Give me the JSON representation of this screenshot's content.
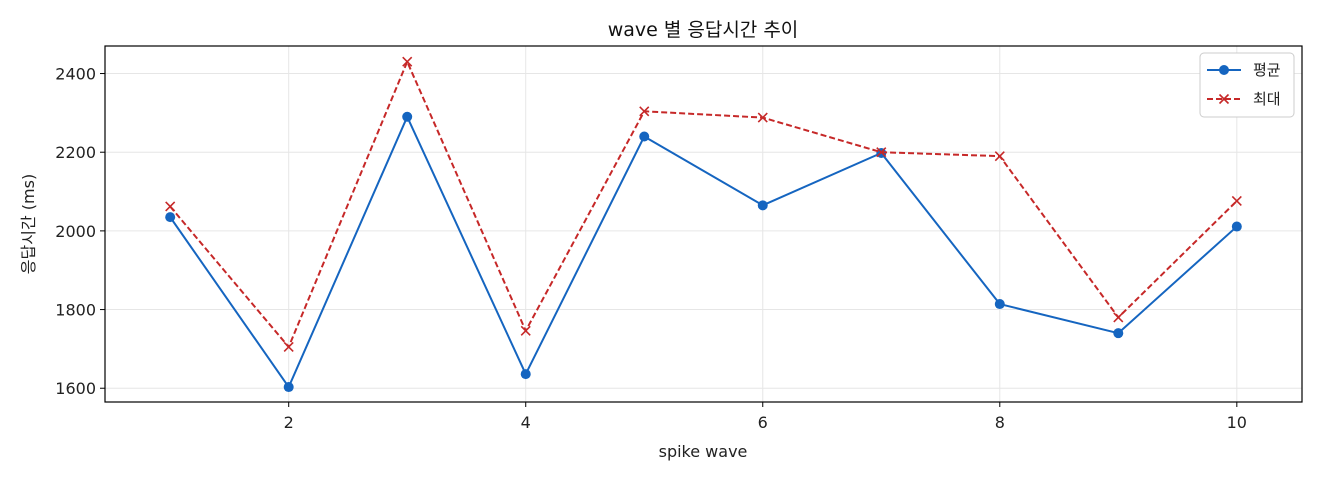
{
  "chart_data": {
    "type": "line",
    "title": "wave 별 응답시간 추이",
    "xlabel": "spike wave",
    "ylabel": "응답시간 (ms)",
    "x": [
      1,
      2,
      3,
      4,
      5,
      6,
      7,
      8,
      9,
      10
    ],
    "xlim": [
      0.45,
      10.55
    ],
    "ylim": [
      1565,
      2470
    ],
    "xticks": [
      2,
      4,
      6,
      8,
      10
    ],
    "yticks": [
      1600,
      1800,
      2000,
      2200,
      2400
    ],
    "grid": true,
    "legend_position": "top-right",
    "series": [
      {
        "name": "평균",
        "color": "#1565c0",
        "style": "solid",
        "marker": "circle",
        "values": [
          2035,
          1603,
          2290,
          1636,
          2240,
          2065,
          2198,
          1814,
          1740,
          2011
        ]
      },
      {
        "name": "최대",
        "color": "#c62828",
        "style": "dashed",
        "marker": "x",
        "values": [
          2062,
          1705,
          2430,
          1746,
          2304,
          2288,
          2200,
          2190,
          1780,
          2076
        ]
      }
    ]
  }
}
